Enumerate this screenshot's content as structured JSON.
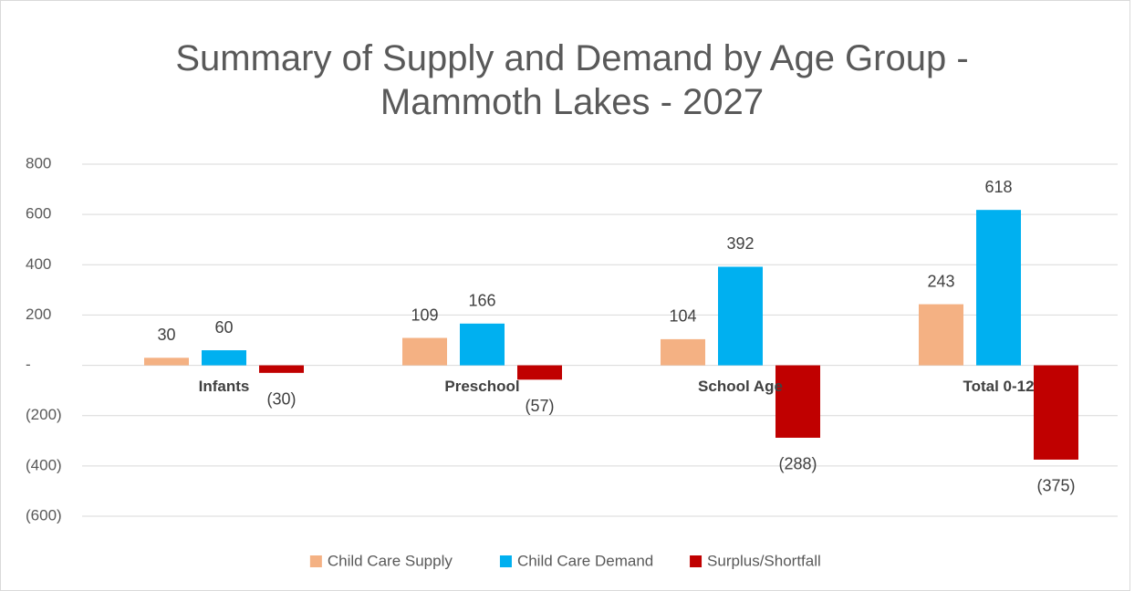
{
  "chart_data": {
    "type": "bar",
    "title": "Summary of Supply and Demand by Age Group - Mammoth Lakes - 2027",
    "categories": [
      "Infants",
      "Preschool",
      "School Age",
      "Total 0-12"
    ],
    "series": [
      {
        "name": "Child Care Supply",
        "color": "#f4b183",
        "values": [
          30,
          109,
          104,
          243
        ]
      },
      {
        "name": "Child Care Demand",
        "color": "#00b0f0",
        "values": [
          60,
          166,
          392,
          618
        ]
      },
      {
        "name": "Surplus/Shortfall",
        "color": "#c00000",
        "values": [
          -30,
          -57,
          -288,
          -375
        ],
        "value_labels": [
          "(30)",
          "(57)",
          "(288)",
          "(375)"
        ]
      }
    ],
    "ylim": [
      -600,
      800
    ],
    "yticks": [
      {
        "value": -600,
        "label": "(600)"
      },
      {
        "value": -400,
        "label": "(400)"
      },
      {
        "value": -200,
        "label": "(200)"
      },
      {
        "value": 0,
        "label": "-"
      },
      200,
      400,
      600,
      800
    ],
    "grid": true,
    "legend": "bottom"
  }
}
